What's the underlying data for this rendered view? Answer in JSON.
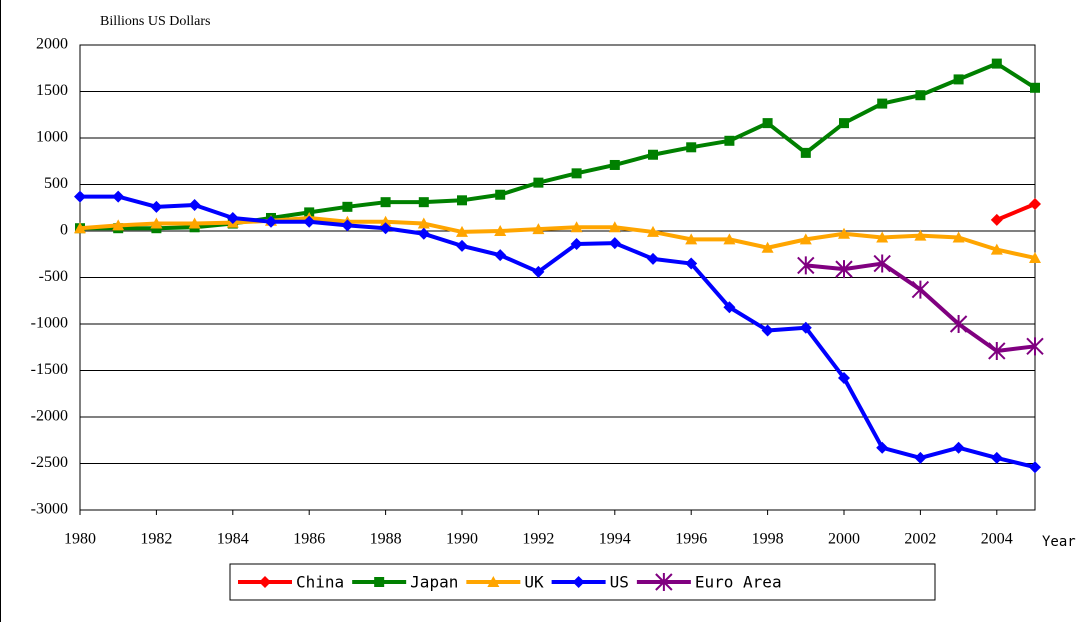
{
  "chart_data": {
    "type": "line",
    "y_label": "Billions US Dollars",
    "x_label": "Year",
    "x": [
      1980,
      1981,
      1982,
      1983,
      1984,
      1985,
      1986,
      1987,
      1988,
      1989,
      1990,
      1991,
      1992,
      1993,
      1994,
      1995,
      1996,
      1997,
      1998,
      1999,
      2000,
      2001,
      2002,
      2003,
      2004,
      2005
    ],
    "xlim": [
      1980,
      2005
    ],
    "xticks": [
      1980,
      1982,
      1984,
      1986,
      1988,
      1990,
      1992,
      1994,
      1996,
      1998,
      2000,
      2002,
      2004
    ],
    "ylim": [
      -3000,
      2000
    ],
    "yticks": [
      -3000,
      -2500,
      -2000,
      -1500,
      -1000,
      -500,
      0,
      500,
      1000,
      1500,
      2000
    ],
    "grid": true,
    "legend": "bottom",
    "series": [
      {
        "name": "China",
        "color": "#ff0000",
        "marker": "diamond",
        "values": [
          null,
          null,
          null,
          null,
          null,
          null,
          null,
          null,
          null,
          null,
          null,
          null,
          null,
          null,
          null,
          null,
          null,
          null,
          null,
          null,
          null,
          null,
          null,
          null,
          120,
          290
        ]
      },
      {
        "name": "Japan",
        "color": "#008000",
        "marker": "square",
        "values": [
          30,
          30,
          30,
          40,
          80,
          140,
          200,
          260,
          310,
          310,
          330,
          390,
          520,
          620,
          710,
          820,
          900,
          970,
          1160,
          840,
          1160,
          1370,
          1460,
          1630,
          1800,
          1540
        ]
      },
      {
        "name": "UK",
        "color": "#ffa500",
        "marker": "triangle",
        "values": [
          30,
          60,
          80,
          80,
          90,
          110,
          140,
          100,
          100,
          80,
          -10,
          0,
          20,
          40,
          40,
          -10,
          -90,
          -90,
          -180,
          -90,
          -30,
          -70,
          -50,
          -70,
          -200,
          -290
        ]
      },
      {
        "name": "US",
        "color": "#0000ff",
        "marker": "diamond",
        "values": [
          370,
          370,
          260,
          280,
          140,
          100,
          100,
          60,
          30,
          -30,
          -160,
          -260,
          -440,
          -140,
          -130,
          -300,
          -350,
          -820,
          -1070,
          -1040,
          -1580,
          -2330,
          -2440,
          -2330,
          -2440,
          -2540
        ]
      },
      {
        "name": "Euro Area",
        "color": "#800080",
        "marker": "star",
        "values": [
          null,
          null,
          null,
          null,
          null,
          null,
          null,
          null,
          null,
          null,
          null,
          null,
          null,
          null,
          null,
          null,
          null,
          null,
          null,
          -370,
          -410,
          -350,
          -630,
          -1000,
          -1290,
          -1240
        ]
      }
    ]
  }
}
